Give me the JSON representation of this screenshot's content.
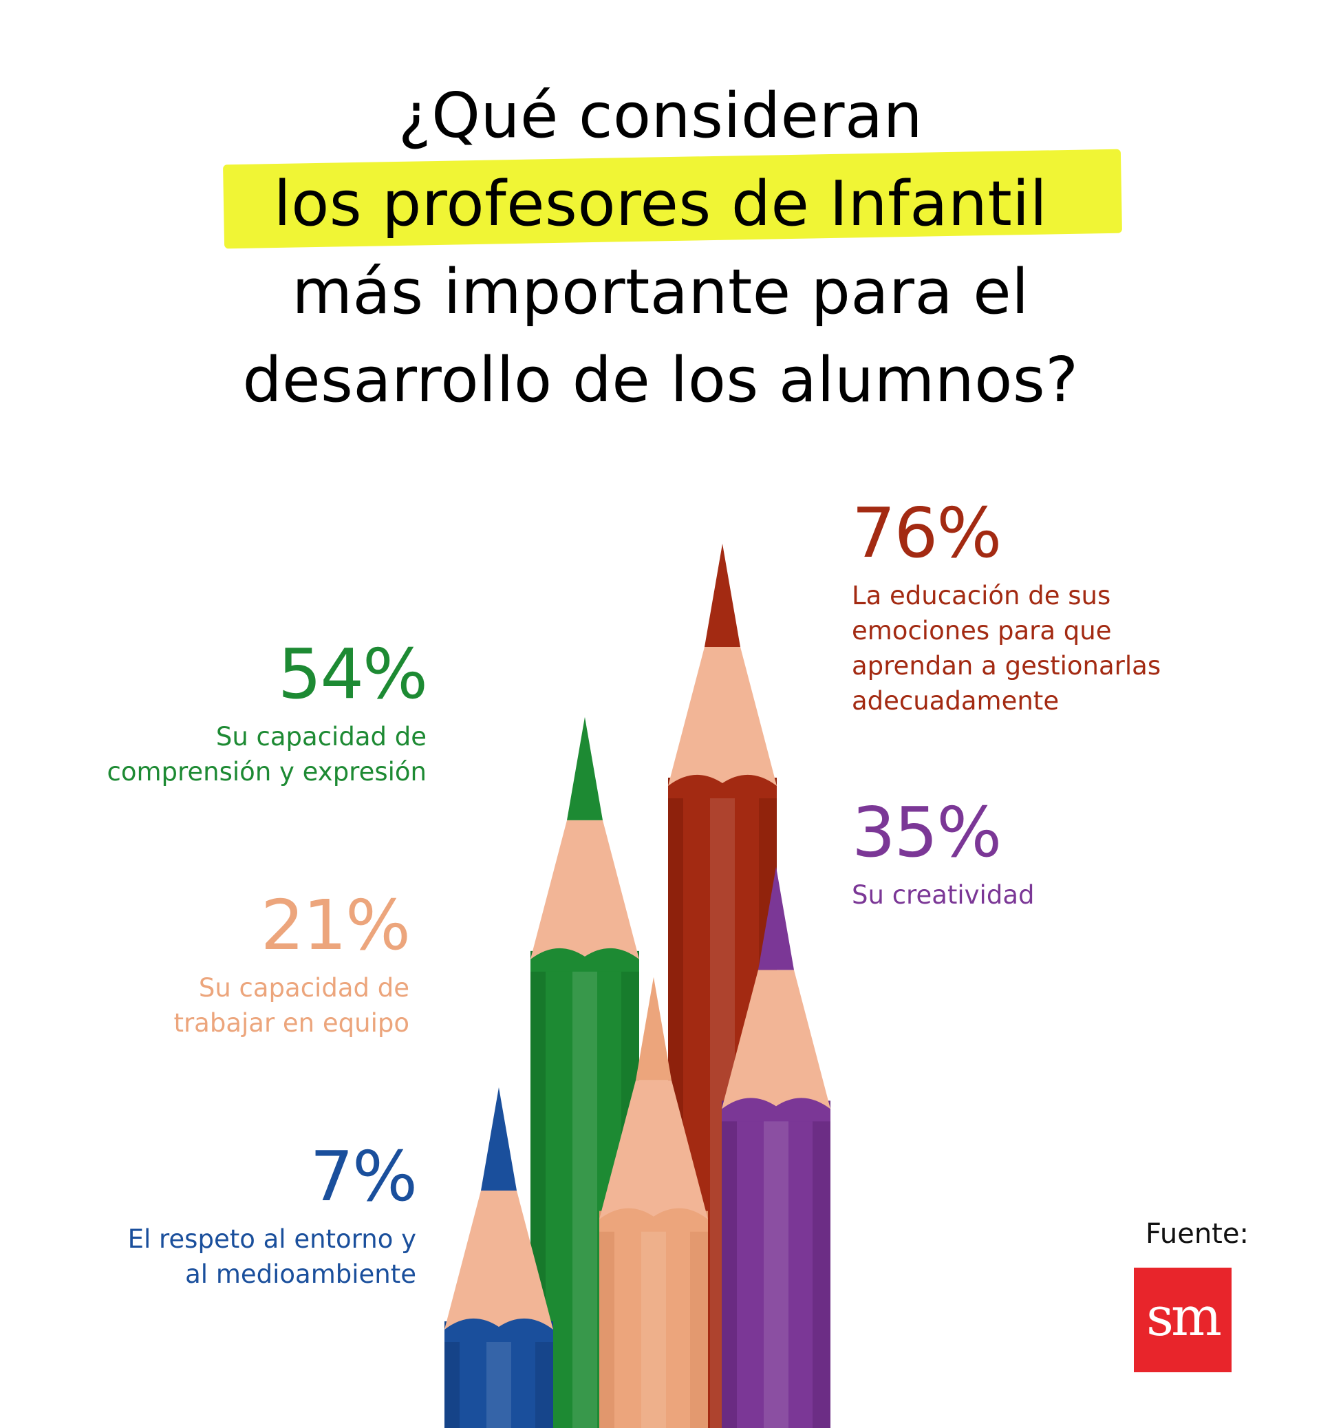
{
  "title": {
    "line1": "¿Qué consideran",
    "line2": "los profesores de Infantil",
    "line3": "más importante para el",
    "line4": "desarrollo de los alumnos?"
  },
  "colors": {
    "highlight": "#f0f535",
    "red": "#a32a12",
    "green": "#1d8a33",
    "peach": "#eca57c",
    "blue": "#1a4f9c",
    "purple": "#7b3796",
    "logo": "#e8252b"
  },
  "chart_data": {
    "type": "bar",
    "categories": [
      "La educación de sus emociones para que aprendan a gestionarlas adecuadamente",
      "Su capacidad de comprensión y expresión",
      "Su creatividad",
      "Su capacidad de trabajar en equipo",
      "El respeto al entorno y al medioambiente"
    ],
    "values": [
      76,
      54,
      35,
      21,
      7
    ],
    "labels": [
      "76%",
      "54%",
      "35%",
      "21%",
      "7%"
    ],
    "unit": "%"
  },
  "stats": {
    "red": {
      "pct": "76%",
      "desc": [
        "La educación de sus",
        "emociones para que",
        "aprendan a gestionarlas",
        "adecuadamente"
      ]
    },
    "green": {
      "pct": "54%",
      "desc": [
        "Su capacidad de",
        "comprensión y expresión"
      ]
    },
    "purple": {
      "pct": "35%",
      "desc": [
        "Su creatividad"
      ]
    },
    "peach": {
      "pct": "21%",
      "desc": [
        "Su capacidad de",
        "trabajar en equipo"
      ]
    },
    "blue": {
      "pct": "7%",
      "desc": [
        "El respeto al entorno y",
        "al medioambiente"
      ]
    }
  },
  "source": {
    "label": "Fuente:",
    "logo_text": "sm"
  }
}
